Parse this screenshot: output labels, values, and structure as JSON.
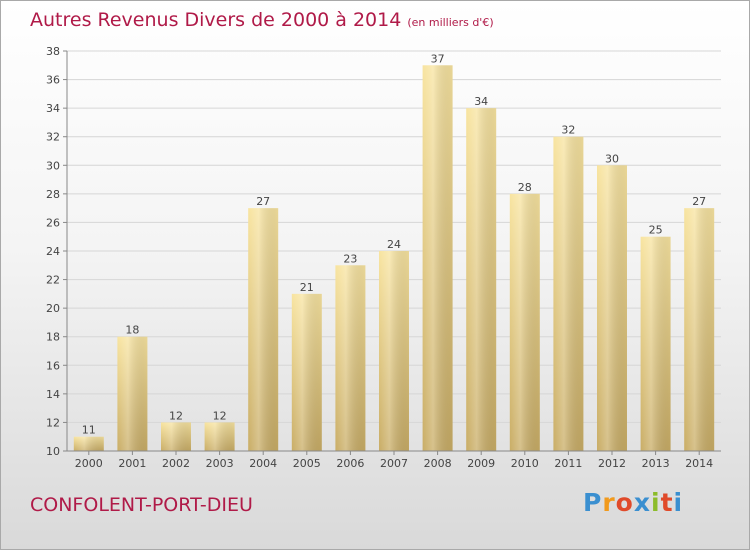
{
  "header": {
    "title": "Autres Revenus Divers de 2000 à 2014",
    "subtitle": "(en milliers d'€)"
  },
  "footer": {
    "commune": "CONFOLENT-PORT-DIEU",
    "logo_text": "Proxiti",
    "logo_colors": [
      "#3a8fd0",
      "#f19a1d",
      "#e04a2a",
      "#3a8fd0",
      "#8cbc2a",
      "#e04a2a",
      "#3a8fd0"
    ]
  },
  "colors": {
    "title": "#b01a48",
    "bar_top": "#f8e4a0",
    "bar_bottom": "#c9ad66",
    "grid": "#d6d6d6",
    "axis": "#888888"
  },
  "chart_data": {
    "type": "bar",
    "categories": [
      "2000",
      "2001",
      "2002",
      "2003",
      "2004",
      "2005",
      "2006",
      "2007",
      "2008",
      "2009",
      "2010",
      "2011",
      "2012",
      "2013",
      "2014"
    ],
    "values": [
      11,
      18,
      12,
      12,
      27,
      21,
      23,
      24,
      37,
      34,
      28,
      32,
      30,
      25,
      27
    ],
    "title": "Autres Revenus Divers de 2000 à 2014",
    "subtitle": "(en milliers d'€)",
    "xlabel": "",
    "ylabel": "",
    "ylim": [
      10,
      38
    ],
    "yticks": [
      10,
      12,
      14,
      16,
      18,
      20,
      22,
      24,
      26,
      28,
      30,
      32,
      34,
      36,
      38
    ],
    "grid": true,
    "data_labels": true
  }
}
